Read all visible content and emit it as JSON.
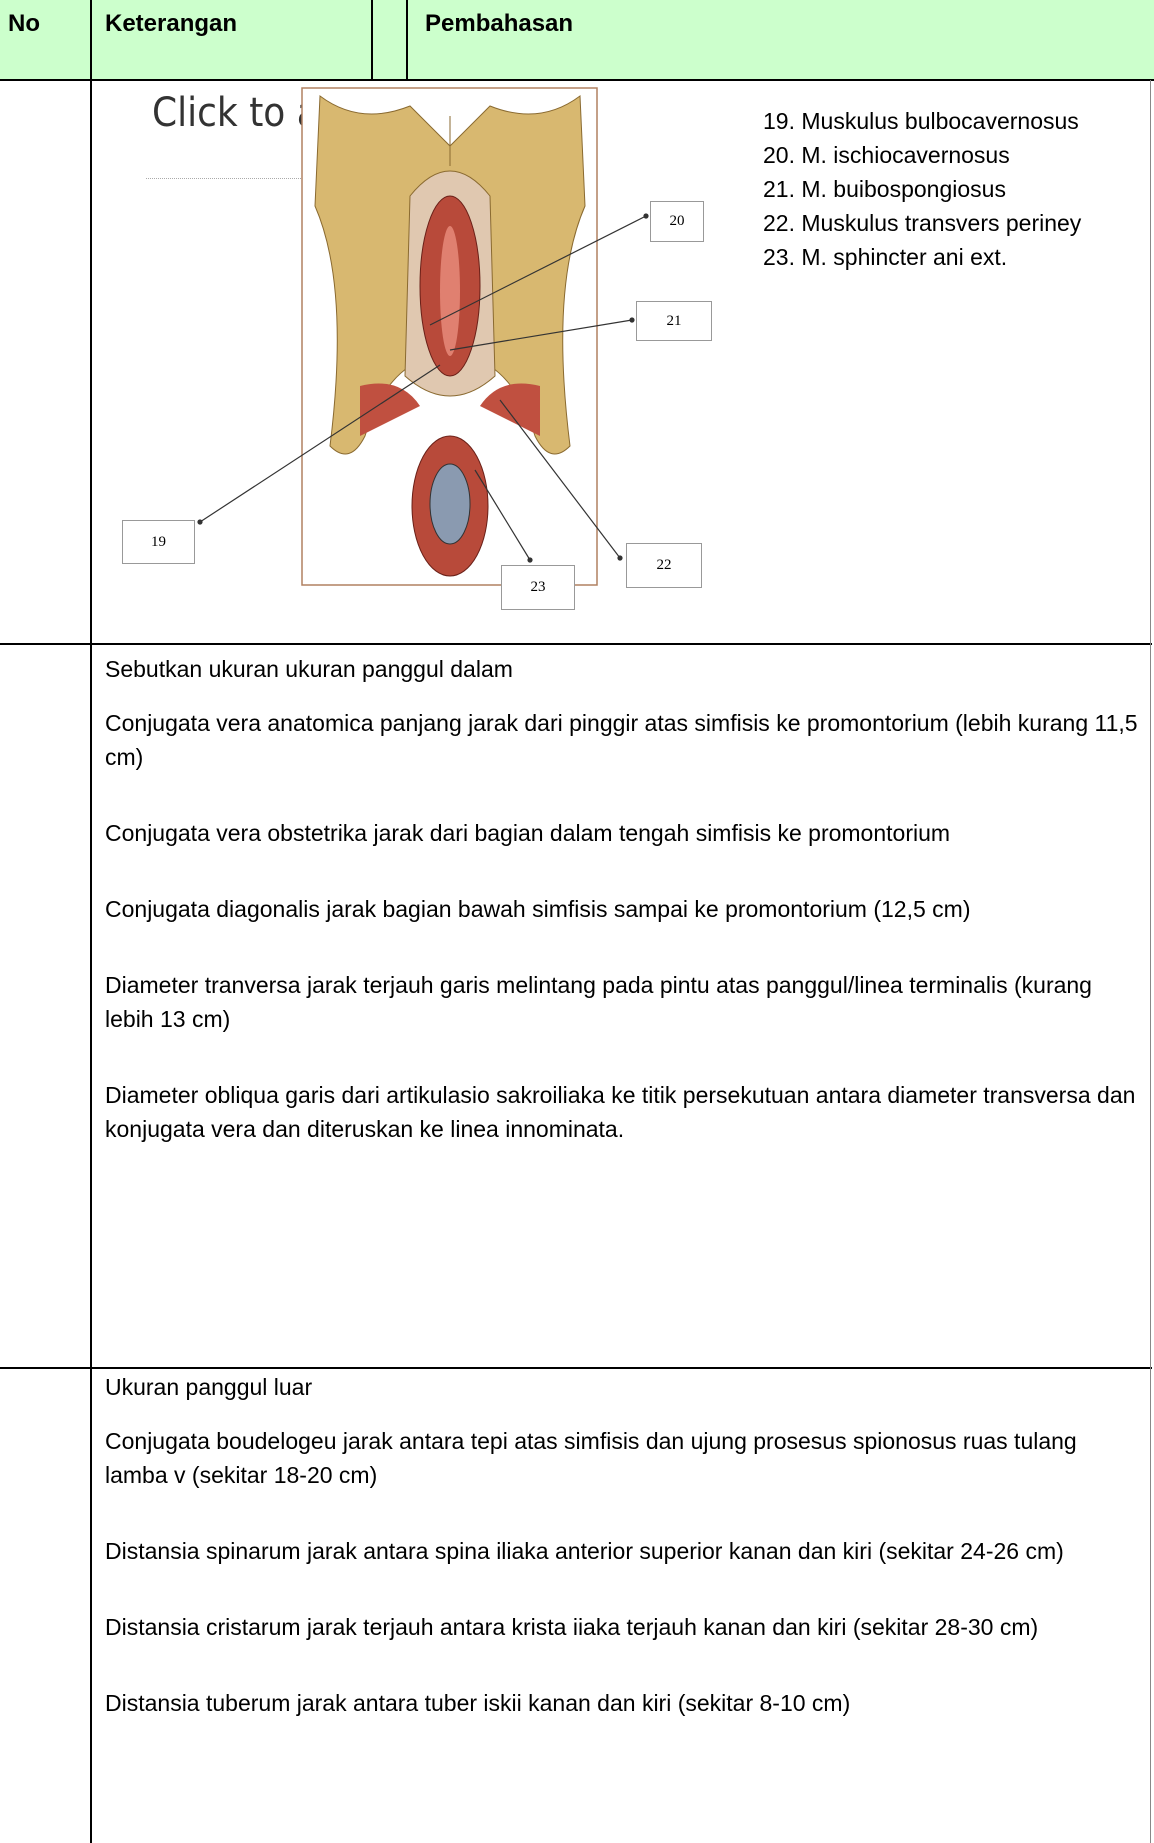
{
  "header": {
    "no": "No",
    "keterangan": "Keterangan",
    "pembahasan": "Pembahasan"
  },
  "rows": [
    {
      "figure": {
        "overlay_text": "Click to ad",
        "labels": [
          "20",
          "21",
          "19",
          "23",
          "22"
        ]
      },
      "list": [
        "19.  Muskulus bulbocavernosus",
        "20. M. ischiocavernosus",
        "21. M. buibospongiosus",
        "22. Muskulus transvers periney",
        "23. M. sphincter ani ext."
      ]
    },
    {
      "title": "Sebutkan ukuran ukuran panggul dalam",
      "items": [
        "Conjugata vera anatomica panjang jarak dari pinggir atas simfisis ke promontorium (lebih kurang 11,5 cm)",
        "Conjugata vera obstetrika jarak dari bagian dalam tengah simfisis ke promontorium",
        "Conjugata diagonalis jarak bagian bawah simfisis sampai ke promontorium (12,5 cm)",
        "Diameter tranversa jarak terjauh garis melintang pada pintu atas panggul/linea terminalis (kurang lebih 13 cm)",
        "Diameter obliqua garis dari artikulasio sakroiliaka ke titik persekutuan antara diameter transversa dan konjugata vera dan diteruskan ke linea innominata."
      ]
    },
    {
      "title": "Ukuran panggul luar",
      "items": [
        "Conjugata boudelogeu jarak antara tepi atas simfisis dan ujung prosesus spionosus ruas tulang lamba v (sekitar 18-20 cm)",
        "Distansia spinarum jarak antara spina iliaka anterior superior kanan dan kiri (sekitar 24-26 cm)",
        "Distansia cristarum jarak terjauh antara krista iiaka terjauh kanan dan kiri (sekitar 28-30 cm)",
        "Distansia tuberum jarak antara tuber iskii kanan dan kiri (sekitar 8-10 cm)"
      ]
    }
  ]
}
